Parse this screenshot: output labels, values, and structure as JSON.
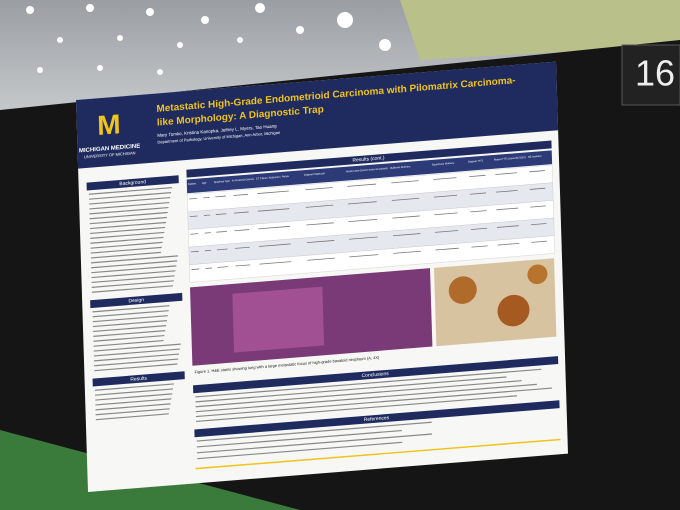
{
  "scene": {
    "booth_number": "16"
  },
  "poster": {
    "title": [
      "Metastatic High-Grade Endometrioid Carcinoma with Pilomatrix Carcinoma-",
      "like Morphology: A Diagnostic Trap"
    ],
    "authors": "Mary Tomko, Kristina Kanopka, Jeffrey L. Myers, Tao Huang",
    "affiliation": "Department of Pathology, University of Michigan, Ann Arbor, Michigan",
    "logo": {
      "name": "MICHIGAN MEDICINE",
      "sub": "UNIVERSITY OF MICHIGAN"
    },
    "sections": {
      "background": "Background",
      "design": "Design",
      "results": "Results",
      "results_cont": "Results (cont.)",
      "conclusions": "Conclusions",
      "references": "References"
    },
    "table_headers": [
      "Patient",
      "Age",
      "Specimen Type",
      "Hx of Endometrial Carcinoma",
      "CT Chest / Abdomen / Pelvis",
      "Original Diagnosis",
      "Aberrant β-catenin Expression (nuclear and cytoplasmic)",
      "Mullerian Markers",
      "Squamous Markers",
      "Original TTF1",
      "Repeat TTF1 (clone 8G7G3/1)",
      "NE markers"
    ],
    "figure_caption": "Figure 1. H&E stains showing lung with a large metastatic focus of high-grade basaloid neoplasm (A, 4X)"
  }
}
